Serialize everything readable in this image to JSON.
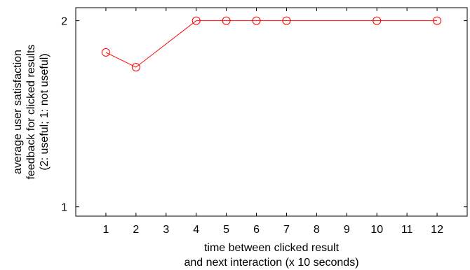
{
  "chart_data": {
    "type": "line",
    "title": "",
    "xlabel": [
      "time between clicked result",
      "and next interaction (x 10 seconds)"
    ],
    "ylabel": [
      "average user satisfaction",
      "feedback for clicked results",
      "(2: useful; 1: not useful)"
    ],
    "xlim": [
      0,
      13
    ],
    "ylim": [
      0.95,
      2.07
    ],
    "x_ticks": [
      1,
      2,
      3,
      4,
      5,
      6,
      7,
      8,
      9,
      10,
      11,
      12
    ],
    "x_tick_labels": [
      "1",
      "2",
      "3",
      "4",
      "5",
      "6",
      "7",
      "8",
      "9",
      "10",
      "11",
      "12"
    ],
    "y_ticks": [
      1,
      2
    ],
    "y_tick_labels": [
      "1",
      "2"
    ],
    "grid": false,
    "legend": "none",
    "series": [
      {
        "color": "#ff0000",
        "marker": "circle-open",
        "x": [
          1,
          2,
          4,
          5,
          6,
          7,
          10,
          12
        ],
        "y": [
          1.83,
          1.75,
          2.0,
          2.0,
          2.0,
          2.0,
          2.0,
          2.0
        ]
      }
    ]
  }
}
